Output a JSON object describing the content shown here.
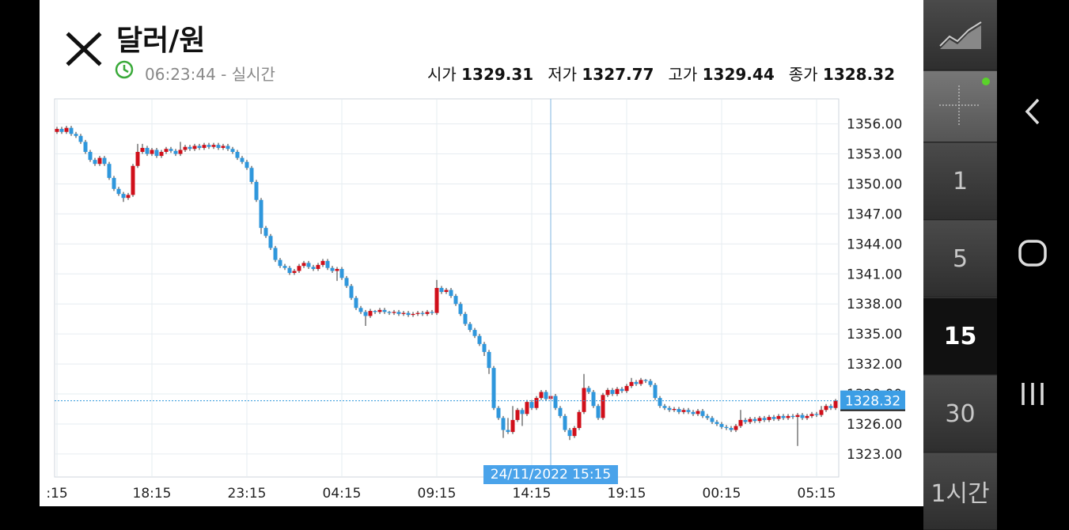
{
  "header": {
    "title": "달러/원",
    "time": "06:23:44 - 실시간",
    "stats": [
      {
        "label": "시가",
        "value": "1329.31"
      },
      {
        "label": "저가",
        "value": "1327.77"
      },
      {
        "label": "고가",
        "value": "1329.44"
      },
      {
        "label": "종가",
        "value": "1328.32"
      }
    ]
  },
  "chart_data": {
    "type": "candlestick",
    "categories": [
      ":15",
      null,
      null,
      null,
      null,
      null,
      null,
      null,
      null,
      null,
      null,
      null,
      null,
      null,
      null,
      null,
      null,
      null,
      null,
      null,
      "18:15",
      null,
      null,
      null,
      null,
      null,
      null,
      null,
      null,
      null,
      null,
      null,
      null,
      null,
      null,
      null,
      null,
      null,
      null,
      null,
      "23:15",
      null,
      null,
      null,
      null,
      null,
      null,
      null,
      null,
      null,
      null,
      null,
      null,
      null,
      null,
      null,
      null,
      null,
      null,
      null,
      "04:15",
      null,
      null,
      null,
      null,
      null,
      null,
      null,
      null,
      null,
      null,
      null,
      null,
      null,
      null,
      null,
      null,
      null,
      null,
      null,
      "09:15",
      null,
      null,
      null,
      null,
      null,
      null,
      null,
      null,
      null,
      null,
      null,
      null,
      null,
      null,
      null,
      null,
      null,
      null,
      null,
      "14:15",
      null,
      null,
      null,
      null,
      null,
      null,
      null,
      null,
      null,
      null,
      null,
      null,
      null,
      null,
      null,
      null,
      null,
      null,
      null,
      "19:15",
      null,
      null,
      null,
      null,
      null,
      null,
      null,
      null,
      null,
      null,
      null,
      null,
      null,
      null,
      null,
      null,
      null,
      null,
      null,
      "00:15",
      null,
      null,
      null,
      null,
      null,
      null,
      null,
      null,
      null,
      null,
      null,
      null,
      null,
      null,
      null,
      null,
      null,
      null,
      null,
      "05:15",
      null,
      null,
      null,
      null
    ],
    "open": [
      1355.2,
      1355.5,
      1355.2,
      1355.6,
      1355.0,
      1354.8,
      1354.2,
      1353.2,
      1352.4,
      1352.0,
      1352.6,
      1352.0,
      1350.6,
      1349.5,
      1349.0,
      1348.6,
      1348.9,
      1351.8,
      1353.2,
      1353.6,
      1353.0,
      1353.4,
      1352.8,
      1353.2,
      1353.5,
      1353.3,
      1353.0,
      1353.4,
      1353.7,
      1353.5,
      1353.8,
      1353.6,
      1353.9,
      1353.7,
      1353.9,
      1353.6,
      1353.8,
      1353.5,
      1353.2,
      1352.6,
      1352.2,
      1351.6,
      1350.2,
      1348.4,
      1345.6,
      1344.8,
      1343.6,
      1342.4,
      1341.8,
      1341.6,
      1341.1,
      1341.3,
      1341.8,
      1342.1,
      1341.7,
      1341.5,
      1341.9,
      1342.3,
      1341.6,
      1341.3,
      1341.5,
      1340.6,
      1339.8,
      1338.6,
      1337.6,
      1337.2,
      1336.8,
      1337.3,
      1337.2,
      1337.4,
      1337.2,
      1337.1,
      1337.2,
      1337.0,
      1337.1,
      1336.9,
      1337.0,
      1337.1,
      1337.0,
      1337.2,
      1337.1,
      1339.6,
      1339.2,
      1339.4,
      1338.8,
      1338.0,
      1337.0,
      1336.0,
      1335.4,
      1334.8,
      1334.0,
      1333.2,
      1331.6,
      1327.6,
      1326.6,
      1325.4,
      1325.2,
      1326.4,
      1327.4,
      1327.0,
      1328.2,
      1327.6,
      1328.6,
      1329.2,
      1328.5,
      1328.8,
      1327.6,
      1326.8,
      1325.4,
      1324.8,
      1325.6,
      1327.2,
      1329.6,
      1329.2,
      1327.8,
      1326.6,
      1328.9,
      1329.4,
      1329.0,
      1329.5,
      1329.3,
      1329.8,
      1330.2,
      1330.0,
      1330.4,
      1330.3,
      1329.9,
      1328.6,
      1327.8,
      1327.6,
      1327.4,
      1327.5,
      1327.2,
      1327.4,
      1327.2,
      1327.0,
      1327.3,
      1326.8,
      1326.6,
      1326.2,
      1326.0,
      1325.7,
      1325.6,
      1325.4,
      1325.8,
      1326.4,
      1326.2,
      1326.5,
      1326.3,
      1326.6,
      1326.4,
      1326.7,
      1326.5,
      1326.8,
      1326.6,
      1326.8,
      1326.7,
      1326.9,
      1326.6,
      1326.8,
      1327.0,
      1326.9,
      1327.4,
      1327.8,
      1327.6
    ],
    "high": [
      1355.7,
      1355.7,
      1355.8,
      1355.8,
      1355.2,
      1355.0,
      1354.4,
      1353.4,
      1352.6,
      1352.8,
      1352.8,
      1352.2,
      1350.8,
      1349.7,
      1349.2,
      1349.1,
      1352.0,
      1354.0,
      1354.0,
      1353.8,
      1353.6,
      1353.6,
      1353.4,
      1353.7,
      1353.7,
      1353.5,
      1354.2,
      1353.9,
      1353.9,
      1354.0,
      1354.0,
      1354.1,
      1354.1,
      1354.1,
      1354.1,
      1354.0,
      1354.0,
      1353.7,
      1353.4,
      1352.8,
      1352.4,
      1351.8,
      1350.4,
      1348.6,
      1345.8,
      1345.0,
      1343.8,
      1342.6,
      1342.0,
      1341.8,
      1341.5,
      1342.0,
      1342.3,
      1342.3,
      1341.9,
      1342.1,
      1342.5,
      1342.5,
      1341.8,
      1341.7,
      1341.7,
      1340.8,
      1340.0,
      1338.8,
      1337.8,
      1337.4,
      1337.5,
      1337.4,
      1337.6,
      1337.6,
      1337.3,
      1337.4,
      1337.4,
      1337.3,
      1337.3,
      1337.2,
      1337.3,
      1337.3,
      1337.4,
      1337.4,
      1340.4,
      1339.8,
      1339.6,
      1339.6,
      1339.0,
      1338.2,
      1337.2,
      1336.2,
      1335.6,
      1335.0,
      1334.2,
      1333.4,
      1331.8,
      1327.8,
      1326.8,
      1326.6,
      1327.8,
      1327.6,
      1327.6,
      1328.4,
      1328.4,
      1328.8,
      1329.4,
      1329.4,
      1329.0,
      1329.0,
      1327.8,
      1327.0,
      1325.6,
      1325.8,
      1327.4,
      1331.0,
      1329.8,
      1329.4,
      1328.0,
      1329.1,
      1329.6,
      1329.6,
      1329.7,
      1329.7,
      1330.0,
      1330.6,
      1330.4,
      1330.6,
      1330.5,
      1330.5,
      1330.1,
      1328.8,
      1328.0,
      1327.8,
      1327.7,
      1327.7,
      1327.6,
      1327.6,
      1327.4,
      1327.5,
      1327.5,
      1327.0,
      1326.8,
      1326.4,
      1326.2,
      1325.9,
      1325.8,
      1326.0,
      1327.4,
      1326.6,
      1326.7,
      1326.7,
      1326.8,
      1326.8,
      1326.9,
      1326.9,
      1327.0,
      1327.0,
      1327.0,
      1327.0,
      1327.1,
      1327.1,
      1327.0,
      1327.2,
      1327.2,
      1327.8,
      1328.0,
      1328.0,
      1328.5
    ],
    "low": [
      1355.0,
      1355.0,
      1355.0,
      1354.8,
      1354.6,
      1354.0,
      1353.0,
      1352.2,
      1351.8,
      1351.8,
      1351.8,
      1350.4,
      1349.3,
      1348.8,
      1348.2,
      1348.4,
      1348.7,
      1351.6,
      1353.0,
      1352.8,
      1352.8,
      1352.6,
      1352.6,
      1353.0,
      1353.1,
      1352.8,
      1352.8,
      1353.2,
      1353.3,
      1353.3,
      1353.4,
      1353.4,
      1353.5,
      1353.5,
      1353.4,
      1353.4,
      1353.3,
      1353.0,
      1352.4,
      1352.0,
      1351.4,
      1350.0,
      1348.2,
      1345.0,
      1344.6,
      1343.4,
      1342.2,
      1341.6,
      1341.4,
      1340.9,
      1340.9,
      1341.1,
      1341.6,
      1341.5,
      1341.3,
      1341.3,
      1341.7,
      1341.4,
      1341.1,
      1340.3,
      1340.4,
      1339.6,
      1338.4,
      1337.4,
      1337.0,
      1335.8,
      1336.6,
      1337.0,
      1337.0,
      1337.0,
      1336.9,
      1336.9,
      1336.8,
      1336.8,
      1336.7,
      1336.7,
      1336.8,
      1336.8,
      1336.8,
      1336.9,
      1336.9,
      1339.0,
      1339.0,
      1338.6,
      1337.8,
      1336.8,
      1335.8,
      1335.2,
      1334.6,
      1333.8,
      1332.8,
      1331.0,
      1327.4,
      1326.4,
      1324.6,
      1325.0,
      1325.0,
      1326.2,
      1325.8,
      1326.8,
      1327.4,
      1327.4,
      1328.4,
      1328.3,
      1328.3,
      1327.4,
      1326.6,
      1325.2,
      1324.4,
      1324.6,
      1325.4,
      1327.0,
      1329.0,
      1327.6,
      1326.4,
      1326.4,
      1328.7,
      1328.8,
      1328.8,
      1329.1,
      1329.1,
      1329.6,
      1329.8,
      1329.8,
      1330.1,
      1329.7,
      1328.4,
      1327.6,
      1327.4,
      1327.2,
      1327.2,
      1327.0,
      1327.0,
      1327.0,
      1326.8,
      1326.8,
      1326.6,
      1326.4,
      1326.0,
      1325.8,
      1325.5,
      1325.4,
      1325.2,
      1325.2,
      1325.6,
      1326.0,
      1326.0,
      1326.1,
      1326.1,
      1326.2,
      1326.2,
      1326.3,
      1326.3,
      1326.4,
      1326.4,
      1326.5,
      1323.8,
      1326.4,
      1326.4,
      1326.6,
      1326.7,
      1326.7,
      1327.2,
      1327.4,
      1327.4
    ],
    "close": [
      1355.5,
      1355.2,
      1355.6,
      1355.0,
      1354.8,
      1354.2,
      1353.2,
      1352.4,
      1352.0,
      1352.6,
      1352.0,
      1350.6,
      1349.5,
      1349.0,
      1348.6,
      1348.9,
      1351.8,
      1353.2,
      1353.6,
      1353.0,
      1353.4,
      1352.8,
      1353.2,
      1353.5,
      1353.3,
      1353.0,
      1353.4,
      1353.7,
      1353.5,
      1353.8,
      1353.6,
      1353.9,
      1353.7,
      1353.9,
      1353.6,
      1353.8,
      1353.5,
      1353.2,
      1352.6,
      1352.2,
      1351.6,
      1350.2,
      1348.4,
      1345.6,
      1344.8,
      1343.6,
      1342.4,
      1341.8,
      1341.6,
      1341.1,
      1341.3,
      1341.8,
      1342.1,
      1341.7,
      1341.5,
      1341.9,
      1342.3,
      1341.6,
      1341.3,
      1341.5,
      1340.6,
      1339.8,
      1338.6,
      1337.6,
      1337.2,
      1336.8,
      1337.3,
      1337.2,
      1337.4,
      1337.2,
      1337.1,
      1337.2,
      1337.0,
      1337.1,
      1336.9,
      1337.0,
      1337.1,
      1337.0,
      1337.2,
      1337.1,
      1339.6,
      1339.2,
      1339.4,
      1338.8,
      1338.0,
      1337.0,
      1336.0,
      1335.4,
      1334.8,
      1334.0,
      1333.2,
      1331.6,
      1327.6,
      1326.6,
      1325.4,
      1325.2,
      1326.4,
      1327.4,
      1327.0,
      1328.2,
      1327.6,
      1328.6,
      1329.2,
      1328.5,
      1328.8,
      1327.6,
      1326.8,
      1325.4,
      1324.8,
      1325.6,
      1327.2,
      1329.6,
      1329.2,
      1327.8,
      1326.6,
      1328.9,
      1329.4,
      1329.0,
      1329.5,
      1329.3,
      1329.8,
      1330.2,
      1330.0,
      1330.4,
      1330.3,
      1329.9,
      1328.6,
      1327.8,
      1327.6,
      1327.4,
      1327.5,
      1327.2,
      1327.4,
      1327.2,
      1327.0,
      1327.3,
      1326.8,
      1326.6,
      1326.2,
      1326.0,
      1325.7,
      1325.6,
      1325.4,
      1325.8,
      1326.4,
      1326.2,
      1326.5,
      1326.3,
      1326.6,
      1326.4,
      1326.7,
      1326.5,
      1326.8,
      1326.6,
      1326.8,
      1326.7,
      1326.9,
      1326.6,
      1326.8,
      1327.0,
      1326.9,
      1327.4,
      1327.8,
      1327.6,
      1328.32
    ],
    "up_color": "#d0101b",
    "down_color": "#2f97dc",
    "ylim": [
      1320.7,
      1358.5
    ],
    "yticks": [
      {
        "value": 1323,
        "label": "1323.00"
      },
      {
        "value": 1326,
        "label": "1326.00"
      },
      {
        "value": 1329,
        "label": "1329.00"
      },
      {
        "value": 1332,
        "label": "1332.00"
      },
      {
        "value": 1335,
        "label": "1335.00"
      },
      {
        "value": 1338,
        "label": "1338.00"
      },
      {
        "value": 1341,
        "label": "1341.00"
      },
      {
        "value": 1344,
        "label": "1344.00"
      },
      {
        "value": 1347,
        "label": "1347.00"
      },
      {
        "value": 1350,
        "label": "1350.00"
      },
      {
        "value": 1353,
        "label": "1353.00"
      },
      {
        "value": 1356,
        "label": "1356.00"
      }
    ],
    "grid": true,
    "crosshair_label": "24/11/2022 15:15"
  },
  "intervals": [
    "1",
    "5",
    "15",
    "30",
    "1시간"
  ],
  "selected_interval": "15"
}
